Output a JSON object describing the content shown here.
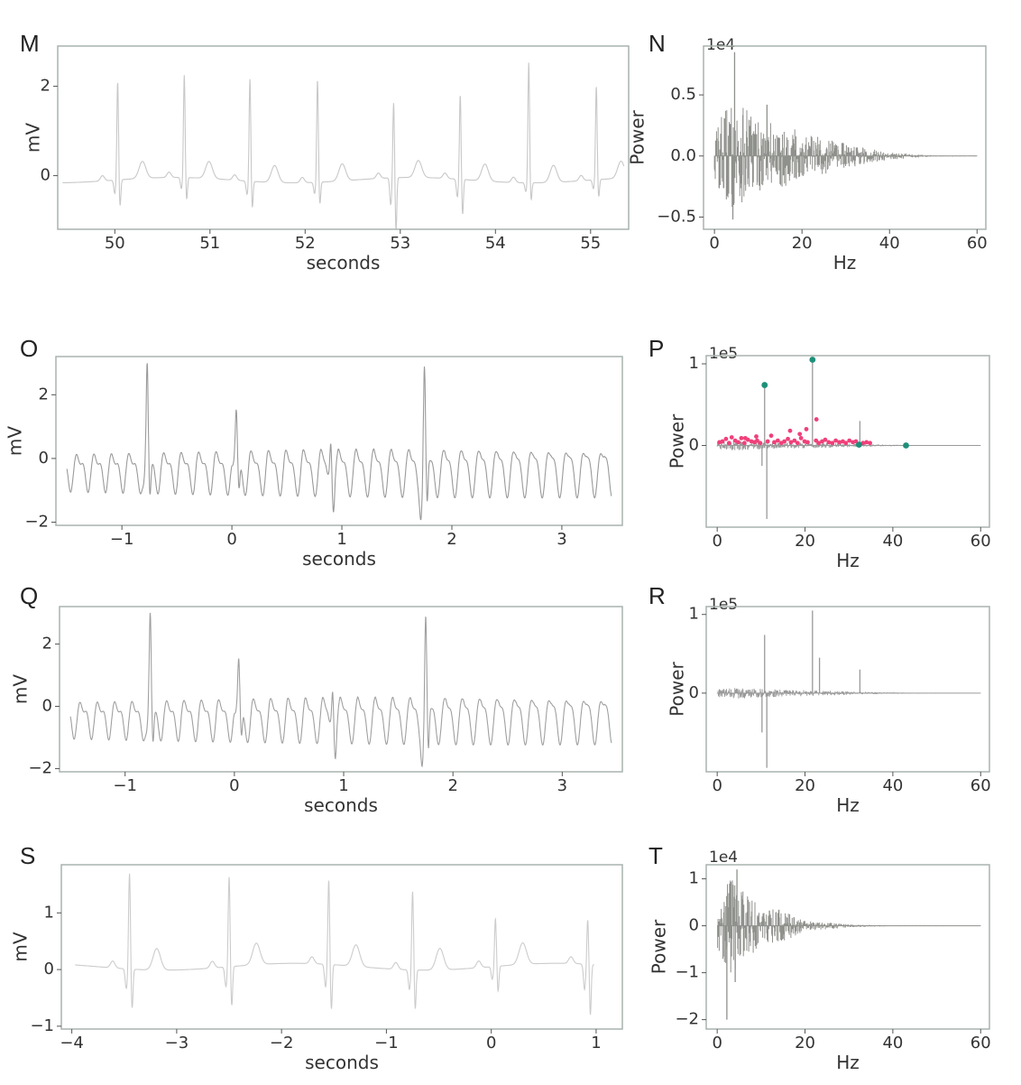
{
  "chart_data": [
    {
      "panel": "M",
      "type": "line",
      "xlabel": "seconds",
      "ylabel": "mV",
      "xlim": [
        49.4,
        55.4
      ],
      "ylim": [
        -1.2,
        2.9
      ],
      "xticks": [
        50,
        51,
        52,
        53,
        54,
        55
      ],
      "yticks": [
        0,
        2
      ],
      "offset_label": "",
      "color": "#c8c8c8",
      "waveform": {
        "kind": "ecg",
        "t0": 49.45,
        "t1": 55.35,
        "baseline": -0.1,
        "beats": [
          {
            "t": 50.03,
            "amp": 2.2,
            "s": -0.6
          },
          {
            "t": 50.73,
            "amp": 2.3,
            "s": -0.5
          },
          {
            "t": 51.42,
            "amp": 2.3,
            "s": -0.6
          },
          {
            "t": 52.13,
            "amp": 2.3,
            "s": -0.5
          },
          {
            "t": 52.93,
            "amp": 1.7,
            "s": -1.2
          },
          {
            "t": 53.63,
            "amp": 1.9,
            "s": -0.8
          },
          {
            "t": 54.35,
            "amp": 2.7,
            "s": -0.4
          },
          {
            "t": 55.06,
            "amp": 2.1,
            "s": -0.4
          }
        ]
      }
    },
    {
      "panel": "N",
      "type": "area",
      "xlabel": "Hz",
      "ylabel": "Power",
      "xlim": [
        -2.5,
        62
      ],
      "ylim": [
        -0.6,
        0.9
      ],
      "xticks": [
        0,
        20,
        40,
        60
      ],
      "yticks": [
        -0.5,
        0.0,
        0.5
      ],
      "ytick_labels": [
        "−0.5",
        "0.0",
        "0.5"
      ],
      "offset_label": "1e4",
      "color": "#8f918c",
      "spectrum": {
        "f_max": 60,
        "envelope": [
          [
            0,
            0.25
          ],
          [
            4,
            0.45
          ],
          [
            10,
            0.32
          ],
          [
            20,
            0.2
          ],
          [
            30,
            0.1
          ],
          [
            40,
            0.03
          ],
          [
            50,
            0.005
          ],
          [
            60,
            0.003
          ]
        ],
        "spikes": [
          {
            "f": 4.6,
            "v": 0.85
          },
          {
            "f": 4.2,
            "v": -0.52
          },
          {
            "f": 12,
            "v": 0.42
          }
        ]
      }
    },
    {
      "panel": "O",
      "type": "line",
      "xlabel": "seconds",
      "ylabel": "mV",
      "xlim": [
        -1.6,
        3.55
      ],
      "ylim": [
        -2.1,
        3.2
      ],
      "xticks": [
        -1,
        0,
        1,
        2,
        3
      ],
      "yticks": [
        -2,
        0,
        2
      ],
      "ytick_labels": [
        "−2",
        "0",
        "2"
      ],
      "xtick_labels": [
        "−1",
        "0",
        "1",
        "2",
        "3"
      ],
      "offset_label": "",
      "color": "#9a9a9a",
      "waveform": {
        "kind": "af",
        "t0": -1.5,
        "t1": 3.45,
        "baseline": -0.2,
        "beats": [
          {
            "t": -0.77,
            "amp": 2.9,
            "s": -1.0
          },
          {
            "t": 0.04,
            "amp": 1.6,
            "s": -0.8
          },
          {
            "t": 0.9,
            "amp": 1.4,
            "s": -0.6
          },
          {
            "t": 1.75,
            "amp": 2.9,
            "s": -1.6
          }
        ]
      }
    },
    {
      "panel": "P",
      "type": "scatter",
      "xlabel": "Hz",
      "ylabel": "Power",
      "xlim": [
        -2.5,
        62
      ],
      "ylim": [
        -1.0,
        1.1
      ],
      "xticks": [
        0,
        20,
        40,
        60
      ],
      "yticks": [
        0,
        1
      ],
      "offset_label": "1e5",
      "color": "#9a9a9a",
      "spectrum": {
        "f_max": 60,
        "envelope": [
          [
            0,
            0.05
          ],
          [
            5,
            0.06
          ],
          [
            12,
            0.04
          ],
          [
            25,
            0.03
          ],
          [
            35,
            0.015
          ],
          [
            45,
            0.004
          ],
          [
            60,
            0.002
          ]
        ],
        "spikes": [
          {
            "f": 10.8,
            "v": 0.74
          },
          {
            "f": 21.7,
            "v": 1.05
          },
          {
            "f": 11.3,
            "v": -0.9
          },
          {
            "f": 10.2,
            "v": -0.25
          },
          {
            "f": 32.5,
            "v": 0.3
          }
        ]
      },
      "series": [
        {
          "name": "peaks",
          "color": "#1f8f7a",
          "x": [
            10.8,
            21.7,
            32.3,
            43.0
          ],
          "y": [
            0.74,
            1.05,
            0.01,
            0.0
          ]
        },
        {
          "name": "candidates",
          "color": "#f0407a",
          "x": [
            0.5,
            1.2,
            2.0,
            2.7,
            3.3,
            4.1,
            4.8,
            5.5,
            6.2,
            7.0,
            7.8,
            8.5,
            9.1,
            9.8,
            11.5,
            12.3,
            13.0,
            13.8,
            14.6,
            15.3,
            16.1,
            16.8,
            17.6,
            18.3,
            19.1,
            19.9,
            20.6,
            22.5,
            23.1,
            23.9,
            24.6,
            25.4,
            26.2,
            27.0,
            27.8,
            28.6,
            29.3,
            30.1,
            30.9,
            31.6,
            33.2,
            34.0,
            34.8,
            16.6,
            22.6,
            18.8,
            20.3,
            8.9,
            6.4
          ],
          "y": [
            0.04,
            0.05,
            0.08,
            0.03,
            0.1,
            0.06,
            0.04,
            0.09,
            0.03,
            0.07,
            0.05,
            0.04,
            0.06,
            0.03,
            0.05,
            0.12,
            0.04,
            0.06,
            0.03,
            0.05,
            0.08,
            0.04,
            0.06,
            0.03,
            0.09,
            0.05,
            0.04,
            0.06,
            0.03,
            0.05,
            0.07,
            0.04,
            0.03,
            0.06,
            0.04,
            0.05,
            0.03,
            0.06,
            0.04,
            0.05,
            0.03,
            0.04,
            0.03,
            0.18,
            0.32,
            0.14,
            0.2,
            0.11,
            0.09
          ]
        }
      ]
    },
    {
      "panel": "Q",
      "type": "line",
      "xlabel": "seconds",
      "ylabel": "mV",
      "xlim": [
        -1.6,
        3.55
      ],
      "ylim": [
        -2.1,
        3.2
      ],
      "xticks": [
        -1,
        0,
        1,
        2,
        3
      ],
      "yticks": [
        -2,
        0,
        2
      ],
      "ytick_labels": [
        "−2",
        "0",
        "2"
      ],
      "xtick_labels": [
        "−1",
        "0",
        "1",
        "2",
        "3"
      ],
      "offset_label": "",
      "color": "#a0a0a0",
      "waveform": {
        "kind": "af",
        "t0": -1.5,
        "t1": 3.45,
        "baseline": -0.2,
        "beats": [
          {
            "t": -0.77,
            "amp": 2.9,
            "s": -1.0
          },
          {
            "t": 0.04,
            "amp": 1.6,
            "s": -0.8
          },
          {
            "t": 0.9,
            "amp": 1.4,
            "s": -0.6
          },
          {
            "t": 1.75,
            "amp": 2.9,
            "s": -1.6
          }
        ]
      }
    },
    {
      "panel": "R",
      "type": "area",
      "xlabel": "Hz",
      "ylabel": "Power",
      "xlim": [
        -2.5,
        62
      ],
      "ylim": [
        -1.0,
        1.1
      ],
      "xticks": [
        0,
        20,
        40,
        60
      ],
      "yticks": [
        0,
        1
      ],
      "offset_label": "1e5",
      "color": "#9a9a9a",
      "spectrum": {
        "f_max": 60,
        "envelope": [
          [
            0,
            0.05
          ],
          [
            5,
            0.07
          ],
          [
            12,
            0.05
          ],
          [
            25,
            0.03
          ],
          [
            35,
            0.015
          ],
          [
            45,
            0.004
          ],
          [
            60,
            0.002
          ]
        ],
        "spikes": [
          {
            "f": 10.8,
            "v": 0.74
          },
          {
            "f": 21.7,
            "v": 1.05
          },
          {
            "f": 11.3,
            "v": -0.95
          },
          {
            "f": 10.2,
            "v": -0.5
          },
          {
            "f": 23.3,
            "v": 0.45
          },
          {
            "f": 32.5,
            "v": 0.3
          }
        ]
      }
    },
    {
      "panel": "S",
      "type": "line",
      "xlabel": "seconds",
      "ylabel": "mV",
      "xlim": [
        -4.1,
        1.25
      ],
      "ylim": [
        -1.05,
        1.85
      ],
      "xticks": [
        -4,
        -3,
        -2,
        -1,
        0,
        1
      ],
      "yticks": [
        -1,
        0,
        1
      ],
      "ytick_labels": [
        "−1",
        "0",
        "1"
      ],
      "xtick_labels": [
        "−4",
        "−3",
        "−2",
        "−1",
        "0",
        "1"
      ],
      "offset_label": "",
      "color": "#cccccc",
      "waveform": {
        "kind": "ecg",
        "t0": -3.97,
        "t1": 0.98,
        "baseline": 0.05,
        "beats": [
          {
            "t": -3.45,
            "amp": 1.7,
            "s": -0.7
          },
          {
            "t": -2.5,
            "amp": 1.6,
            "s": -0.7
          },
          {
            "t": -1.55,
            "amp": 1.5,
            "s": -0.8
          },
          {
            "t": -0.75,
            "amp": 1.4,
            "s": -0.7
          },
          {
            "t": 0.04,
            "amp": 0.85,
            "s": -0.45
          },
          {
            "t": 0.92,
            "amp": 0.8,
            "s": -0.9
          }
        ]
      }
    },
    {
      "panel": "T",
      "type": "area",
      "xlabel": "Hz",
      "ylabel": "Power",
      "xlim": [
        -2.5,
        62
      ],
      "ylim": [
        -2.2,
        1.3
      ],
      "xticks": [
        0,
        20,
        40,
        60
      ],
      "yticks": [
        -2,
        -1,
        0,
        1
      ],
      "ytick_labels": [
        "−2",
        "−1",
        "0",
        "1"
      ],
      "offset_label": "1e4",
      "color": "#8f918c",
      "spectrum": {
        "f_max": 60,
        "envelope": [
          [
            0,
            0.5
          ],
          [
            3,
            1.0
          ],
          [
            6,
            0.8
          ],
          [
            10,
            0.4
          ],
          [
            15,
            0.35
          ],
          [
            20,
            0.1
          ],
          [
            25,
            0.08
          ],
          [
            30,
            0.03
          ],
          [
            40,
            0.01
          ],
          [
            60,
            0.004
          ]
        ],
        "spikes": [
          {
            "f": 2.2,
            "v": -2.0
          },
          {
            "f": 4.5,
            "v": 1.2
          },
          {
            "f": 4.1,
            "v": -1.2
          }
        ]
      }
    }
  ]
}
